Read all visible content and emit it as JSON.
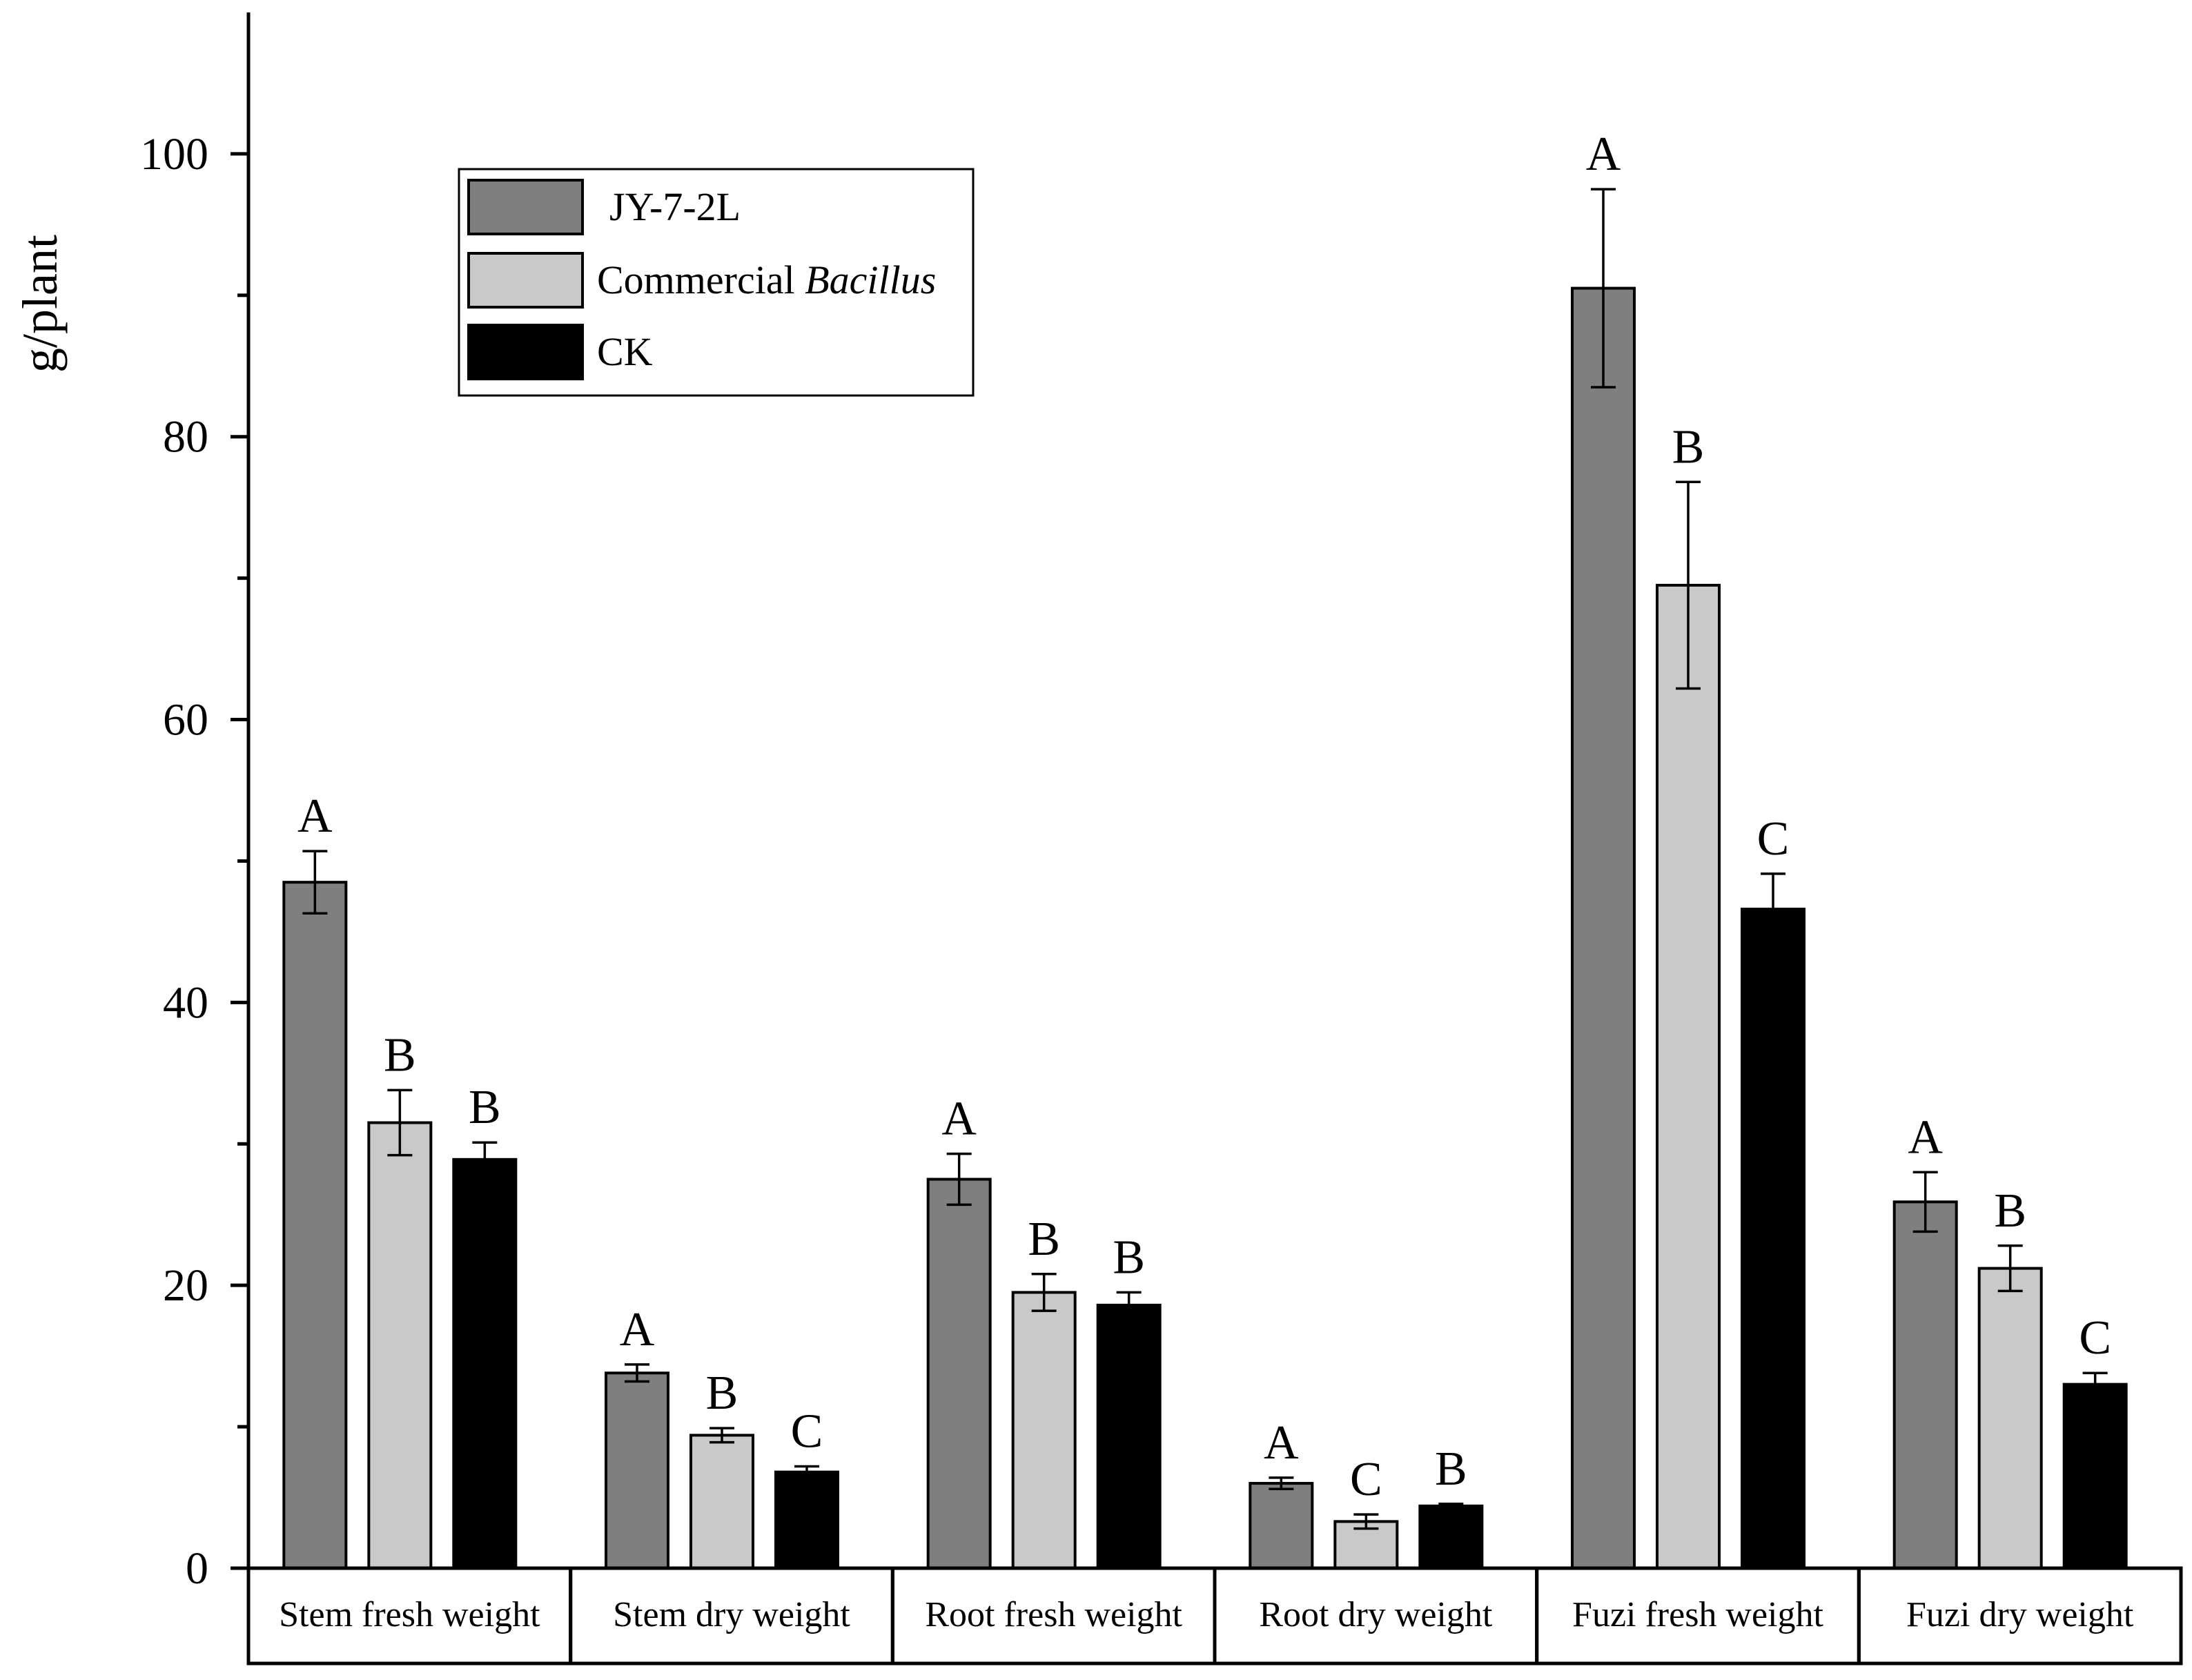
{
  "chart_data": {
    "type": "bar",
    "title": "",
    "xlabel": "",
    "ylabel": "g/plant",
    "ylim": [
      0,
      110
    ],
    "yticks": [
      0,
      20,
      40,
      60,
      80,
      100
    ],
    "grid": false,
    "legend_position": "top-left",
    "categories": [
      "Stem fresh weight",
      "Stem dry weight",
      "Root fresh weight",
      "Root dry weight",
      "Fuzi fresh weight",
      "Fuzi dry weight"
    ],
    "series": [
      {
        "name": "JY-7-2L",
        "color": "#7f7f7f",
        "values": [
          48.5,
          13.8,
          27.5,
          6.0,
          90.5,
          25.9
        ],
        "errors": [
          2.2,
          0.6,
          1.8,
          0.4,
          7.0,
          2.1
        ],
        "letters": [
          "A",
          "A",
          "A",
          "A",
          "A",
          "A"
        ]
      },
      {
        "name": "Commercial Bacillus",
        "name_plain": "Commercial ",
        "name_italic": "Bacillus",
        "color": "#c9c9c9",
        "values": [
          31.5,
          9.4,
          19.5,
          3.3,
          69.5,
          21.2
        ],
        "errors": [
          2.3,
          0.5,
          1.3,
          0.5,
          7.3,
          1.6
        ],
        "letters": [
          "B",
          "B",
          "B",
          "C",
          "B",
          "B"
        ]
      },
      {
        "name": "CK",
        "color": "#000000",
        "values": [
          28.9,
          6.8,
          18.6,
          4.4,
          46.6,
          13.0
        ],
        "errors": [
          1.2,
          0.4,
          0.9,
          0.15,
          2.5,
          0.8
        ],
        "letters": [
          "B",
          "C",
          "B",
          "B",
          "C",
          "C"
        ]
      }
    ]
  }
}
